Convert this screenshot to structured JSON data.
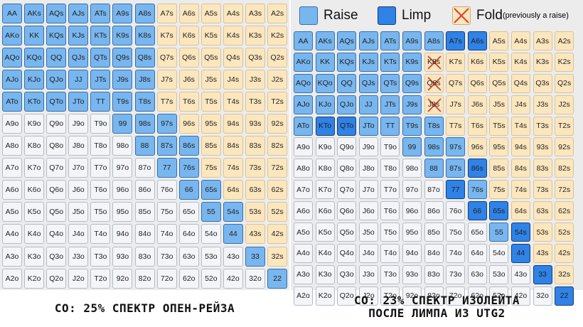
{
  "legend": {
    "raise": "Raise",
    "limp": "Limp",
    "fold": "Fold",
    "fold_note": "(previously a raise)"
  },
  "colors": {
    "raise": "#78b6ef",
    "limp": "#2f82e6",
    "other": "#fbe6bd",
    "offsuit_outside": "#f3f5f8",
    "cross": "#d9412b"
  },
  "left_caption": "CO: 25% СПЕКТР ОПЕН-РЕЙЗА",
  "right_caption_line1": "CO: 23% СПЕКТР ИЗОЛЕЙТА",
  "right_caption_line2": "ПОСЛЕ ЛИМПА ИЗ UTG2",
  "hands": [
    [
      "AA",
      "AKs",
      "AQs",
      "AJs",
      "ATs",
      "A9s",
      "A8s",
      "A7s",
      "A6s",
      "A5s",
      "A4s",
      "A3s",
      "A2s"
    ],
    [
      "AKo",
      "KK",
      "KQs",
      "KJs",
      "KTs",
      "K9s",
      "K8s",
      "K7s",
      "K6s",
      "K5s",
      "K4s",
      "K3s",
      "K2s"
    ],
    [
      "AQo",
      "KQo",
      "QQ",
      "QJs",
      "QTs",
      "Q9s",
      "Q8s",
      "Q7s",
      "Q6s",
      "Q5s",
      "Q4s",
      "Q3s",
      "Q2s"
    ],
    [
      "AJo",
      "KJo",
      "QJo",
      "JJ",
      "JTs",
      "J9s",
      "J8s",
      "J7s",
      "J6s",
      "J5s",
      "J4s",
      "J3s",
      "J2s"
    ],
    [
      "ATo",
      "KTo",
      "QTo",
      "JTo",
      "TT",
      "T9s",
      "T8s",
      "T7s",
      "T6s",
      "T5s",
      "T4s",
      "T3s",
      "T2s"
    ],
    [
      "A9o",
      "K9o",
      "Q9o",
      "J9o",
      "T9o",
      "99",
      "98s",
      "97s",
      "96s",
      "95s",
      "94s",
      "93s",
      "92s"
    ],
    [
      "A8o",
      "K8o",
      "Q8o",
      "J8o",
      "T8o",
      "98o",
      "88",
      "87s",
      "86s",
      "85s",
      "84s",
      "83s",
      "82s"
    ],
    [
      "A7o",
      "K7o",
      "Q7o",
      "J7o",
      "T7o",
      "97o",
      "87o",
      "77",
      "76s",
      "75s",
      "74s",
      "73s",
      "72s"
    ],
    [
      "A6o",
      "K6o",
      "Q6o",
      "J6o",
      "T6o",
      "96o",
      "86o",
      "76o",
      "66",
      "65s",
      "64s",
      "63s",
      "62s"
    ],
    [
      "A5o",
      "K5o",
      "Q5o",
      "J5o",
      "T5o",
      "95o",
      "85o",
      "75o",
      "65o",
      "55",
      "54s",
      "53s",
      "52s"
    ],
    [
      "A4o",
      "K4o",
      "Q4o",
      "J4o",
      "T4o",
      "94o",
      "84o",
      "74o",
      "64o",
      "54o",
      "44",
      "43s",
      "42s"
    ],
    [
      "A3o",
      "K3o",
      "Q3o",
      "J3o",
      "T3o",
      "93o",
      "83o",
      "73o",
      "63o",
      "53o",
      "43o",
      "33",
      "32s"
    ],
    [
      "A2o",
      "K2o",
      "Q2o",
      "J2o",
      "T2o",
      "92o",
      "82o",
      "72o",
      "62o",
      "52o",
      "42o",
      "32o",
      "22"
    ]
  ],
  "left_grid": [
    "RRRRRRRNNNNNN",
    "RRRRRRRNNNNNN",
    "RRRRRRRNNNNNN",
    "RRRRRRRNNNNNN",
    "RRRRRRRNNNNNN",
    "OOOOORRRNNNNN",
    "OOOOOORRRNNNN",
    "OOOOOOORRNNNN",
    "OOOOOOOORRNNN",
    "OOOOOOOOORRNN",
    "OOOOOOOOOORNN",
    "OOOOOOOOOOORN",
    "OOOOOOOOOOOOR"
  ],
  "right_grid": [
    "RRRRRRRLLNNNN",
    "RRRRRRFNNNNNN",
    "RRRRRRFNNNNNN",
    "RRRRRRFNNNNNN",
    "RLLRRRRNNNNNN",
    "OOOOORRRNNNNN",
    "OOOOOORRLNNNN",
    "OOOOOOOLRNNNN",
    "OOOOOOOOLLNNN",
    "OOOOOOOOORLNN",
    "OOOOOOOOOOLNN",
    "OOOOOOOOOOOLN",
    "OOOOOOOOOOOOL"
  ]
}
